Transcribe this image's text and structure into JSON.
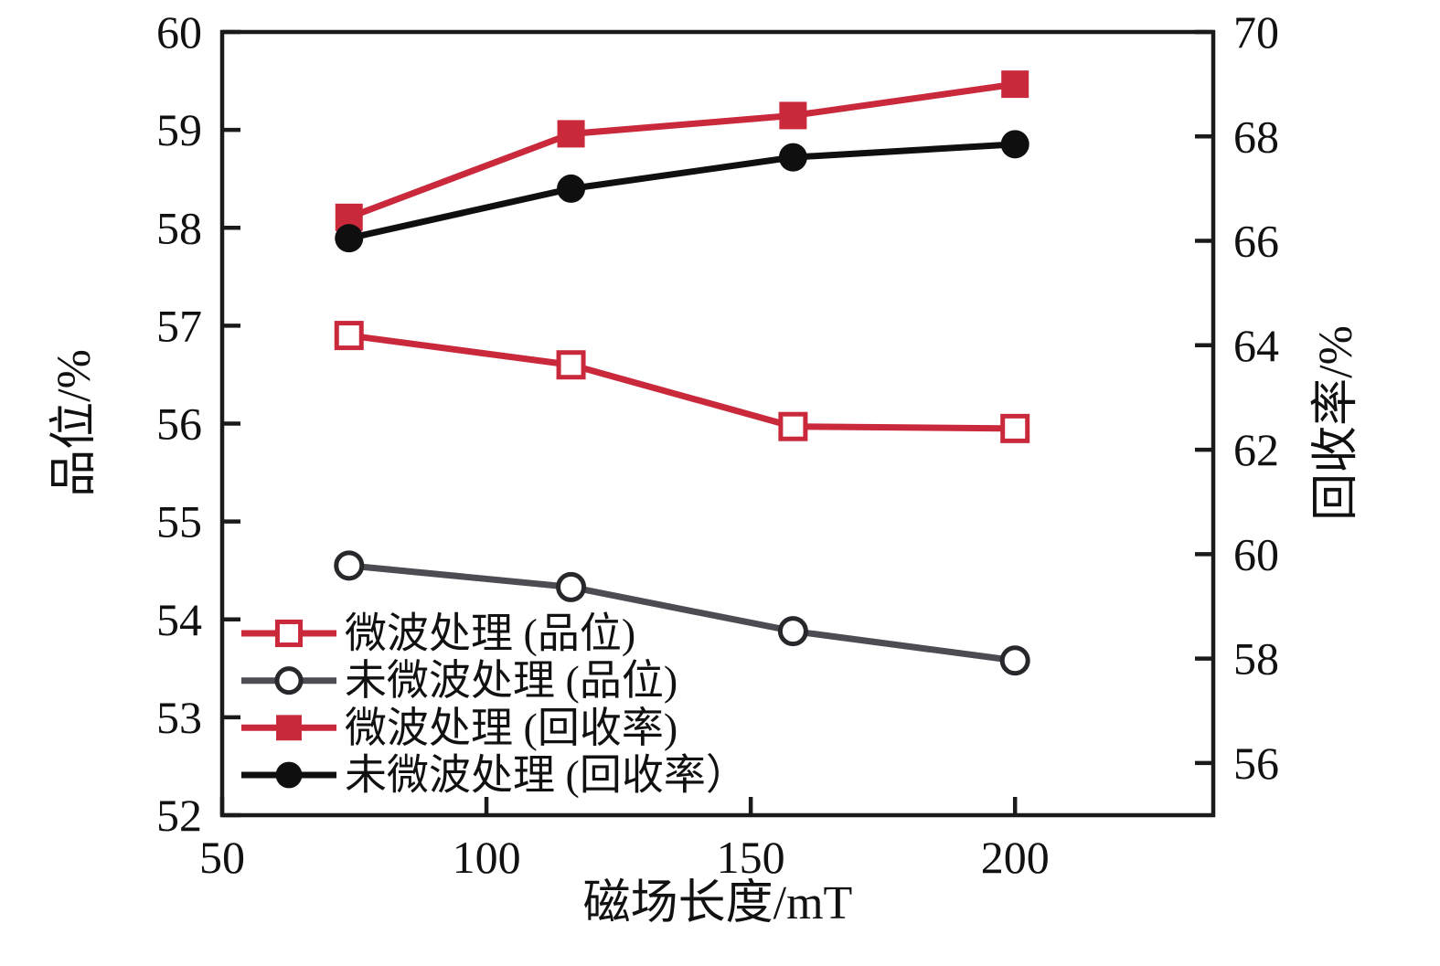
{
  "chart_data": {
    "type": "line",
    "title": "",
    "xlabel": "磁场长度/mT",
    "ylabel_left": "品位/%",
    "ylabel_right": "回收率/%",
    "x": [
      74,
      116,
      158,
      200
    ],
    "x_axis": {
      "min": 50,
      "max": 237.5,
      "ticks": [
        50,
        100,
        150,
        200
      ]
    },
    "y_left": {
      "min": 52,
      "max": 60,
      "ticks": [
        52,
        53,
        54,
        55,
        56,
        57,
        58,
        59,
        60
      ]
    },
    "y_right": {
      "min": 55,
      "max": 70,
      "ticks": [
        56,
        58,
        60,
        62,
        64,
        66,
        68,
        70
      ]
    },
    "grid": false,
    "legend_position": "lower-left",
    "series": [
      {
        "name": "微波处理 (品位)",
        "axis": "left",
        "color": "#c9293b",
        "marker": "square-open",
        "values": [
          56.9,
          56.6,
          55.97,
          55.95
        ]
      },
      {
        "name": "未微波处理 (品位)",
        "axis": "left",
        "color": "#4c4c52",
        "marker": "circle-open",
        "values": [
          54.55,
          54.33,
          53.88,
          53.58
        ]
      },
      {
        "name": "微波处理 (回收率)",
        "axis": "right",
        "color": "#c9293b",
        "marker": "square-filled",
        "values": [
          66.45,
          68.05,
          68.4,
          69.0
        ]
      },
      {
        "name": "未微波处理 (回收率）",
        "axis": "right",
        "color": "#0f0f0f",
        "marker": "circle-filled",
        "values": [
          66.05,
          67.0,
          67.6,
          67.85
        ]
      }
    ]
  },
  "colors": {
    "red": "#c9293b",
    "gray": "#4c4c52",
    "black": "#0f0f0f",
    "axis": "#1a1a1a",
    "marker_fill_open": "#ffffff",
    "background": "#ffffff"
  }
}
